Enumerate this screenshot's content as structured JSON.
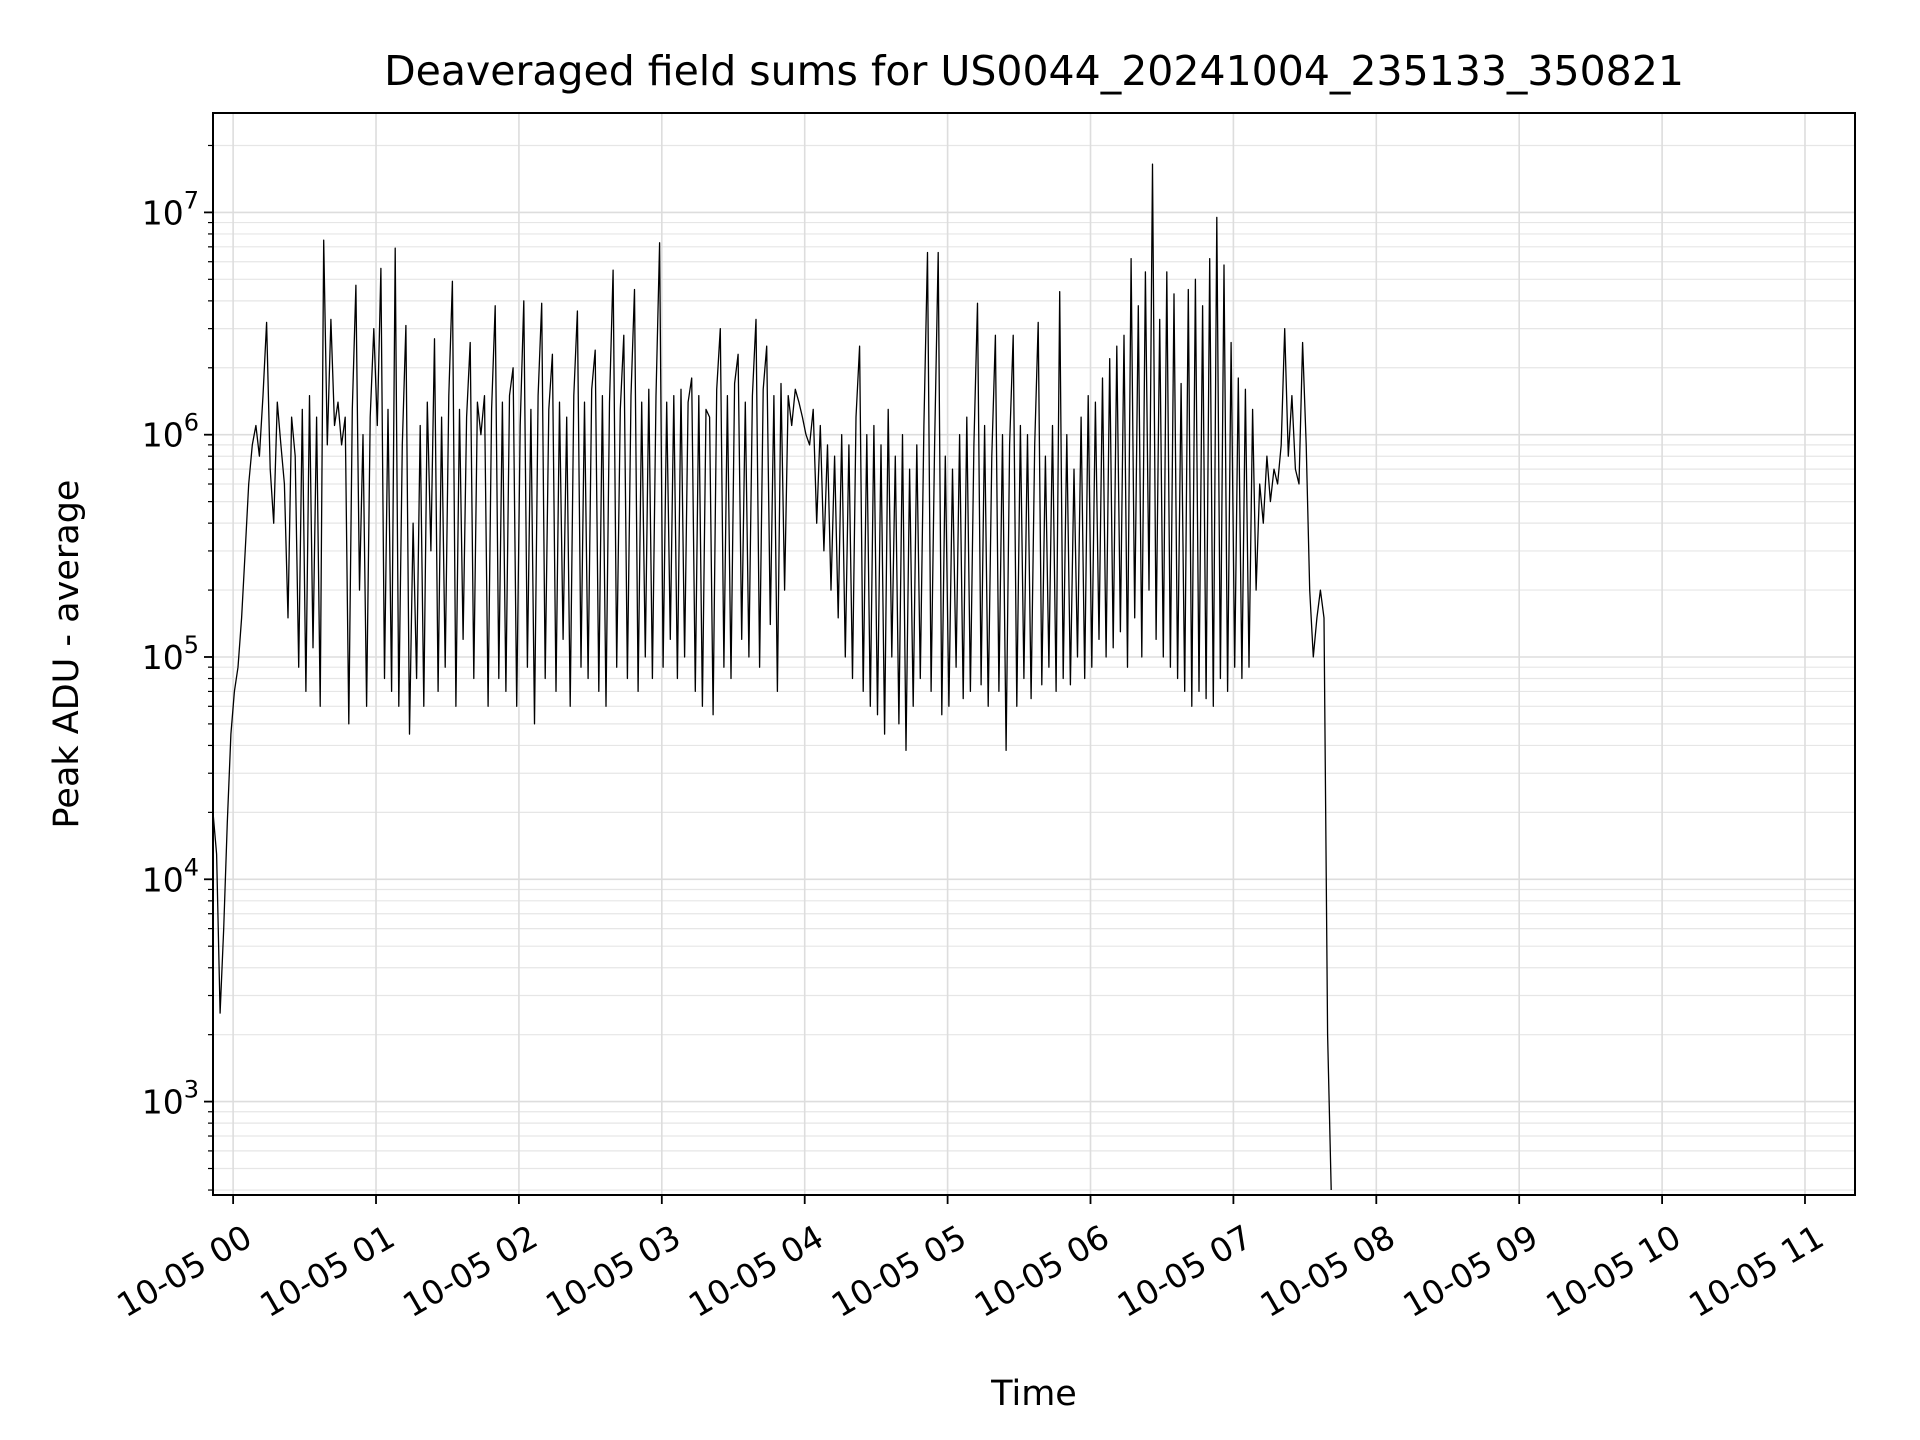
{
  "chart_data": {
    "type": "line",
    "title": "Deaveraged field sums for US0044_20241004_235133_350821",
    "xlabel": "Time",
    "ylabel": "Peak ADU - average",
    "yscale": "log",
    "ylim": [
      380,
      28000000
    ],
    "xlim": [
      "2024-10-04 23:51:33",
      "2024-10-05 11:21:00"
    ],
    "grid": true,
    "x_ticks": [
      "10-05 00",
      "10-05 01",
      "10-05 02",
      "10-05 03",
      "10-05 04",
      "10-05 05",
      "10-05 06",
      "10-05 07",
      "10-05 08",
      "10-05 09",
      "10-05 10",
      "10-05 11"
    ],
    "y_ticks": [
      {
        "base": "10",
        "exp": "3"
      },
      {
        "base": "10",
        "exp": "4"
      },
      {
        "base": "10",
        "exp": "5"
      },
      {
        "base": "10",
        "exp": "6"
      },
      {
        "base": "10",
        "exp": "7"
      }
    ],
    "line_color": "#000000",
    "series": [
      {
        "x_start": "2024-10-04 23:51:33",
        "interval_seconds": 90,
        "note_values": "Peak ADU - average, one value per sample",
        "values": [
          20000,
          13000,
          2500,
          6000,
          18000,
          45000,
          70000,
          90000,
          150000,
          300000,
          600000,
          900000,
          1100000,
          800000,
          1500000,
          3200000,
          700000,
          400000,
          1400000,
          900000,
          600000,
          150000,
          1200000,
          800000,
          90000,
          1300000,
          70000,
          1500000,
          110000,
          1200000,
          60000,
          7500000,
          900000,
          3300000,
          1100000,
          1400000,
          900000,
          1200000,
          50000,
          1300000,
          4700000,
          200000,
          1000000,
          60000,
          1200000,
          3000000,
          1100000,
          5600000,
          80000,
          1300000,
          70000,
          6900000,
          60000,
          900000,
          3100000,
          45000,
          400000,
          80000,
          1100000,
          60000,
          1400000,
          300000,
          2700000,
          70000,
          1200000,
          90000,
          1500000,
          4900000,
          60000,
          1300000,
          120000,
          1200000,
          2600000,
          80000,
          1400000,
          1000000,
          1500000,
          60000,
          1300000,
          3800000,
          80000,
          1400000,
          70000,
          1500000,
          2000000,
          60000,
          1100000,
          4000000,
          90000,
          1300000,
          50000,
          1500000,
          3900000,
          80000,
          1300000,
          2300000,
          70000,
          1400000,
          120000,
          1200000,
          60000,
          1500000,
          3600000,
          90000,
          1400000,
          80000,
          1600000,
          2400000,
          70000,
          1500000,
          60000,
          1400000,
          5500000,
          90000,
          1300000,
          2800000,
          80000,
          1500000,
          4500000,
          70000,
          1400000,
          100000,
          1600000,
          80000,
          1500000,
          7300000,
          90000,
          1400000,
          120000,
          1500000,
          80000,
          1600000,
          100000,
          1400000,
          1800000,
          70000,
          1500000,
          60000,
          1300000,
          1200000,
          55000,
          1600000,
          3000000,
          90000,
          1500000,
          80000,
          1700000,
          2300000,
          120000,
          1400000,
          100000,
          1500000,
          3300000,
          90000,
          1600000,
          2500000,
          140000,
          1500000,
          70000,
          1700000,
          200000,
          1500000,
          1100000,
          1600000,
          1400000,
          1200000,
          1000000,
          900000,
          1300000,
          400000,
          1100000,
          300000,
          900000,
          200000,
          800000,
          150000,
          1000000,
          100000,
          900000,
          80000,
          1200000,
          2500000,
          70000,
          1000000,
          60000,
          1100000,
          55000,
          900000,
          45000,
          1300000,
          100000,
          800000,
          50000,
          1000000,
          38000,
          700000,
          60000,
          900000,
          80000,
          1100000,
          6600000,
          70000,
          900000,
          6600000,
          55000,
          800000,
          60000,
          700000,
          90000,
          1000000,
          65000,
          1200000,
          70000,
          900000,
          3900000,
          75000,
          1100000,
          60000,
          800000,
          2800000,
          70000,
          1000000,
          38000,
          900000,
          2800000,
          60000,
          1100000,
          80000,
          1000000,
          65000,
          900000,
          3200000,
          75000,
          800000,
          90000,
          1100000,
          70000,
          4400000,
          80000,
          1000000,
          75000,
          700000,
          100000,
          1200000,
          80000,
          1500000,
          90000,
          1400000,
          120000,
          1800000,
          100000,
          2200000,
          110000,
          2500000,
          130000,
          2800000,
          90000,
          6200000,
          150000,
          3800000,
          100000,
          5400000,
          200000,
          16500000,
          120000,
          3300000,
          100000,
          5400000,
          90000,
          4300000,
          80000,
          1700000,
          70000,
          4500000,
          60000,
          5000000,
          70000,
          3800000,
          65000,
          6200000,
          60000,
          9500000,
          80000,
          5800000,
          70000,
          2600000,
          90000,
          1800000,
          80000,
          1600000,
          90000,
          1300000,
          200000,
          600000,
          400000,
          800000,
          500000,
          700000,
          600000,
          900000,
          3000000,
          800000,
          1500000,
          700000,
          600000,
          2600000,
          900000,
          200000,
          100000,
          150000,
          200000,
          150000,
          2000,
          400
        ]
      }
    ]
  }
}
